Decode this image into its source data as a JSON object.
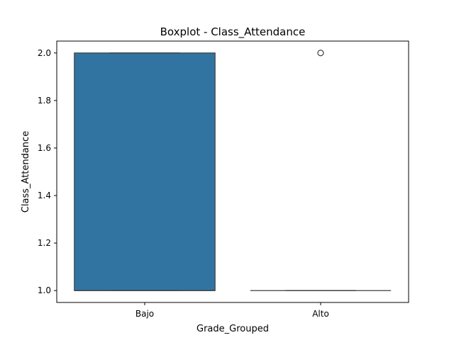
{
  "chart_data": {
    "type": "boxplot",
    "title": "Boxplot - Class_Attendance",
    "xlabel": "Grade_Grouped",
    "ylabel": "Class_Attendance",
    "categories": [
      "Bajo",
      "Alto"
    ],
    "boxes": [
      {
        "category": "Bajo",
        "whisker_low": 1.0,
        "q1": 1.0,
        "median": 1.0,
        "q3": 2.0,
        "whisker_high": 2.0,
        "outliers": []
      },
      {
        "category": "Alto",
        "whisker_low": 1.0,
        "q1": 1.0,
        "median": 1.0,
        "q3": 1.0,
        "whisker_high": 1.0,
        "outliers": [
          2.0
        ]
      }
    ],
    "ylim": [
      0.95,
      2.05
    ],
    "yticks": [
      1.0,
      1.2,
      1.4,
      1.6,
      1.8,
      2.0
    ],
    "ytick_labels": [
      "1.0",
      "1.2",
      "1.4",
      "1.6",
      "1.8",
      "2.0"
    ],
    "grid": false,
    "colors": {
      "box_fill": "#3274a1",
      "line": "#3f3f3f",
      "axis": "#000000"
    }
  }
}
